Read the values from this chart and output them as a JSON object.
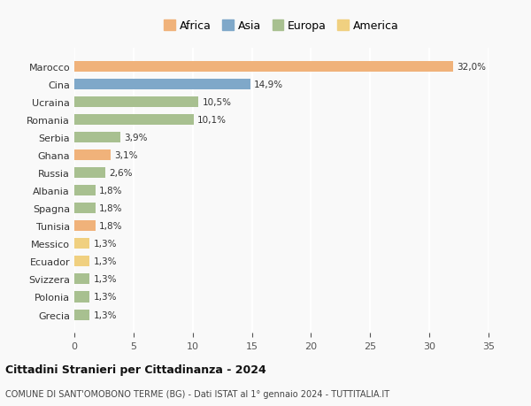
{
  "countries": [
    "Marocco",
    "Cina",
    "Ucraina",
    "Romania",
    "Serbia",
    "Ghana",
    "Russia",
    "Albania",
    "Spagna",
    "Tunisia",
    "Messico",
    "Ecuador",
    "Svizzera",
    "Polonia",
    "Grecia"
  ],
  "values": [
    32.0,
    14.9,
    10.5,
    10.1,
    3.9,
    3.1,
    2.6,
    1.8,
    1.8,
    1.8,
    1.3,
    1.3,
    1.3,
    1.3,
    1.3
  ],
  "labels": [
    "32,0%",
    "14,9%",
    "10,5%",
    "10,1%",
    "3,9%",
    "3,1%",
    "2,6%",
    "1,8%",
    "1,8%",
    "1,8%",
    "1,3%",
    "1,3%",
    "1,3%",
    "1,3%",
    "1,3%"
  ],
  "continents": [
    "Africa",
    "Asia",
    "Europa",
    "Europa",
    "Europa",
    "Africa",
    "Europa",
    "Europa",
    "Europa",
    "Africa",
    "America",
    "America",
    "Europa",
    "Europa",
    "Europa"
  ],
  "colors": {
    "Africa": "#F0B27A",
    "Asia": "#7FA8C9",
    "Europa": "#A8C090",
    "America": "#F0D080"
  },
  "legend_order": [
    "Africa",
    "Asia",
    "Europa",
    "America"
  ],
  "xlim": [
    0,
    35
  ],
  "xticks": [
    0,
    5,
    10,
    15,
    20,
    25,
    30,
    35
  ],
  "title": "Cittadini Stranieri per Cittadinanza - 2024",
  "subtitle": "COMUNE DI SANT'OMOBONO TERME (BG) - Dati ISTAT al 1° gennaio 2024 - TUTTITALIA.IT",
  "background_color": "#f9f9f9",
  "grid_color": "#ffffff",
  "bar_height": 0.6
}
